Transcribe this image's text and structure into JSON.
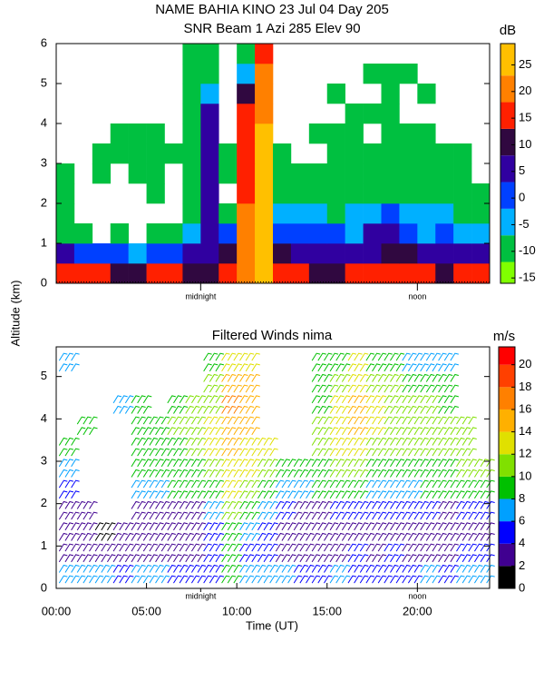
{
  "chart_data": [
    {
      "type": "heatmap",
      "title": "NAME BAHIA KINO  23 Jul 04 Day 205",
      "subtitle": "SNR Beam 1 Azi 285 Elev 90",
      "xlim": [
        0,
        24
      ],
      "ylim": [
        0,
        6
      ],
      "xticks": [
        {
          "value": 8,
          "label": "midnight"
        },
        {
          "value": 20,
          "label": "noon"
        }
      ],
      "yticks": [
        0,
        1,
        2,
        3,
        4,
        5,
        6
      ],
      "x": [
        0.5,
        1.5,
        2.5,
        3.5,
        4.5,
        5.5,
        6.5,
        7.5,
        8.5,
        9.5,
        10.5,
        11.5,
        12.5,
        13.5,
        14.5,
        15.5,
        16.5,
        17.5,
        18.5,
        19.5,
        20.5,
        21.5,
        22.5,
        23.5
      ],
      "y": [
        0.25,
        0.75,
        1.25,
        1.75,
        2.25,
        2.75,
        3.25,
        3.75,
        4.25,
        4.75,
        5.25,
        5.75
      ],
      "values": [
        [
          15,
          15,
          15,
          12,
          12,
          15,
          15,
          12,
          10,
          15,
          20,
          25,
          15,
          15,
          12,
          12,
          15,
          15,
          15,
          15,
          15,
          12,
          15,
          15
        ],
        [
          5,
          0,
          0,
          0,
          -5,
          0,
          0,
          5,
          5,
          10,
          20,
          25,
          10,
          5,
          5,
          5,
          5,
          5,
          10,
          10,
          5,
          5,
          5,
          5
        ],
        [
          -10,
          -10,
          null,
          -10,
          null,
          -10,
          -10,
          -5,
          5,
          0,
          20,
          25,
          0,
          0,
          0,
          0,
          -5,
          5,
          5,
          0,
          -5,
          0,
          -5,
          -5
        ],
        [
          -12,
          null,
          null,
          null,
          null,
          null,
          null,
          -10,
          5,
          -10,
          20,
          25,
          -5,
          -5,
          -5,
          -10,
          -5,
          -5,
          0,
          -5,
          -5,
          -5,
          -10,
          -10
        ],
        [
          -12,
          null,
          null,
          null,
          null,
          -12,
          null,
          -10,
          5,
          null,
          15,
          25,
          -10,
          -10,
          -10,
          -12,
          -10,
          -10,
          -10,
          -10,
          -10,
          -10,
          -10,
          -12
        ],
        [
          -12,
          null,
          -12,
          null,
          -12,
          -12,
          null,
          -12,
          5,
          -12,
          15,
          25,
          -12,
          -12,
          -12,
          -12,
          -12,
          -12,
          -12,
          -12,
          -12,
          -12,
          -12,
          null
        ],
        [
          null,
          null,
          -12,
          -12,
          -12,
          -12,
          -12,
          -12,
          5,
          -12,
          15,
          25,
          -12,
          null,
          null,
          -12,
          -12,
          -12,
          -12,
          -12,
          -12,
          -12,
          -12,
          null
        ],
        [
          null,
          null,
          null,
          -12,
          -12,
          -12,
          null,
          -12,
          5,
          null,
          15,
          25,
          null,
          null,
          -12,
          -12,
          -12,
          null,
          -12,
          -12,
          -12,
          null,
          null,
          null
        ],
        [
          null,
          null,
          null,
          null,
          null,
          null,
          null,
          -12,
          5,
          null,
          15,
          20,
          null,
          null,
          null,
          null,
          -12,
          -12,
          -12,
          null,
          null,
          null,
          null,
          null
        ],
        [
          null,
          null,
          null,
          null,
          null,
          null,
          null,
          -12,
          -5,
          null,
          10,
          20,
          null,
          null,
          null,
          -12,
          null,
          null,
          -12,
          null,
          -12,
          null,
          null,
          null
        ],
        [
          null,
          null,
          null,
          null,
          null,
          null,
          null,
          -12,
          -10,
          null,
          -5,
          20,
          null,
          null,
          null,
          null,
          null,
          -12,
          -12,
          -12,
          null,
          null,
          null,
          null
        ],
        [
          null,
          null,
          null,
          null,
          null,
          null,
          null,
          -12,
          -12,
          null,
          -10,
          15,
          null,
          null,
          null,
          null,
          null,
          null,
          null,
          null,
          null,
          null,
          null,
          null
        ]
      ],
      "colorbar": {
        "title": "dB",
        "bounds": [
          -16,
          -12,
          -7,
          -2,
          3,
          8,
          13,
          18,
          23,
          29
        ],
        "colors": [
          "#80ff00",
          "#00c040",
          "#00b0ff",
          "#0040ff",
          "#3000a0",
          "#300840",
          "#ff2000",
          "#ff8000",
          "#ffc000"
        ],
        "ticks": [
          -15,
          -10,
          -5,
          0,
          5,
          10,
          15,
          20,
          25
        ]
      }
    },
    {
      "type": "barbs",
      "title": "Filtered Winds nima",
      "xlabel": "Time (UT)",
      "ylabel": "Altitude (km)",
      "xlim": [
        0,
        24
      ],
      "ylim": [
        0,
        5.7
      ],
      "xticks": [
        {
          "value": 0,
          "label": "00:00"
        },
        {
          "value": 5,
          "label": "05:00"
        },
        {
          "value": 10,
          "label": "10:00"
        },
        {
          "value": 15,
          "label": "15:00"
        },
        {
          "value": 20,
          "label": "20:00"
        }
      ],
      "local_xticks": [
        {
          "value": 8,
          "label": "midnight"
        },
        {
          "value": 20,
          "label": "noon"
        }
      ],
      "yticks": [
        0,
        1,
        2,
        3,
        4,
        5
      ],
      "x": [
        0.5,
        1.5,
        2.5,
        3.5,
        4.5,
        5.5,
        6.5,
        7.5,
        8.5,
        9.5,
        10.5,
        11.5,
        12.5,
        13.5,
        14.5,
        15.5,
        16.5,
        17.5,
        18.5,
        19.5,
        20.5,
        21.5,
        22.5,
        23.5
      ],
      "y": [
        0.25,
        0.75,
        1.25,
        1.75,
        2.25,
        2.75,
        3.25,
        3.75,
        4.25,
        4.75,
        5.25
      ],
      "values": [
        [
          6,
          6,
          6,
          5,
          6,
          6,
          5,
          5,
          4,
          8,
          6,
          6,
          6,
          5,
          5,
          6,
          5,
          4,
          5,
          5,
          6,
          5,
          6,
          6
        ],
        [
          3,
          3,
          3,
          3,
          2,
          3,
          3,
          3,
          5,
          8,
          5,
          4,
          3,
          3,
          3,
          3,
          4,
          3,
          4,
          3,
          3,
          3,
          4,
          4
        ],
        [
          2,
          2,
          1,
          2,
          2,
          2,
          2,
          2,
          5,
          8,
          6,
          4,
          2,
          2,
          2,
          2,
          3,
          3,
          3,
          3,
          2,
          2,
          3,
          3
        ],
        [
          2,
          3,
          null,
          null,
          3,
          3,
          3,
          3,
          6,
          10,
          8,
          6,
          4,
          3,
          3,
          4,
          5,
          4,
          4,
          4,
          4,
          3,
          4,
          4
        ],
        [
          4,
          null,
          null,
          null,
          7,
          7,
          8,
          8,
          8,
          12,
          10,
          8,
          6,
          7,
          8,
          8,
          8,
          7,
          7,
          7,
          8,
          8,
          8,
          8
        ],
        [
          6,
          null,
          null,
          null,
          8,
          8,
          9,
          9,
          10,
          13,
          12,
          11,
          8,
          8,
          9,
          10,
          11,
          9,
          9,
          9,
          9,
          9,
          10,
          10
        ],
        [
          8,
          null,
          null,
          null,
          9,
          9,
          9,
          10,
          12,
          14,
          13,
          12,
          null,
          null,
          10,
          12,
          13,
          11,
          10,
          10,
          10,
          10,
          11,
          null
        ],
        [
          null,
          8,
          null,
          null,
          8,
          9,
          10,
          10,
          12,
          15,
          14,
          null,
          null,
          null,
          10,
          13,
          14,
          12,
          11,
          11,
          11,
          11,
          11,
          null
        ],
        [
          null,
          null,
          null,
          7,
          9,
          null,
          9,
          10,
          11,
          16,
          15,
          null,
          null,
          null,
          9,
          12,
          14,
          12,
          11,
          10,
          10,
          9,
          null,
          null
        ],
        [
          null,
          null,
          null,
          null,
          null,
          null,
          null,
          null,
          10,
          15,
          14,
          null,
          null,
          null,
          8,
          10,
          13,
          11,
          10,
          9,
          8,
          8,
          null,
          null
        ],
        [
          7,
          null,
          null,
          null,
          null,
          null,
          null,
          null,
          9,
          12,
          13,
          null,
          null,
          null,
          8,
          9,
          12,
          9,
          8,
          7,
          7,
          6,
          null,
          null
        ]
      ],
      "colorbar": {
        "title": "m/s",
        "bounds": [
          0,
          2,
          4,
          6,
          8,
          10,
          12,
          14,
          16,
          18,
          20,
          21.6
        ],
        "colors": [
          "#000000",
          "#400090",
          "#0000ff",
          "#00a0ff",
          "#00c000",
          "#80e000",
          "#e0e000",
          "#ffb000",
          "#ff8000",
          "#ff4000",
          "#ff0000"
        ],
        "ticks": [
          0,
          2,
          4,
          6,
          8,
          10,
          12,
          14,
          16,
          18,
          20
        ]
      }
    }
  ]
}
